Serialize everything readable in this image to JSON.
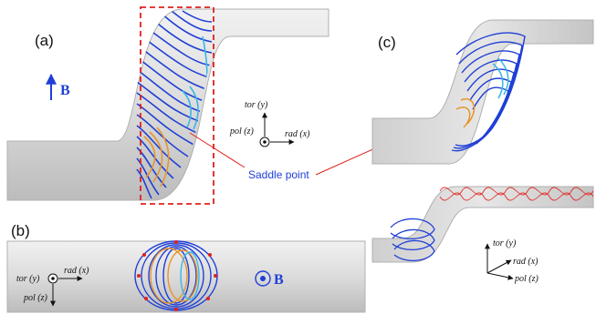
{
  "panels": {
    "a": "(a)",
    "b": "(b)",
    "c": "(c)"
  },
  "annotations": {
    "saddle_point": "Saddle point",
    "field_a": "B",
    "field_b": "B"
  },
  "axes": {
    "a": {
      "tor": "tor (y)",
      "pol": "pol (z)",
      "rad": "rad (x)"
    },
    "b": {
      "tor": "tor (y)",
      "pol": "pol (z)",
      "rad": "rad (x)"
    },
    "c": {
      "tor": "tor (y)",
      "pol": "pol (z)",
      "rad": "rad (x)"
    }
  },
  "colors": {
    "field_lines": "#1f3fd6",
    "highlight_orange": "#e8942a",
    "highlight_cyan": "#39b6e8",
    "annotation_red": "#e0211d",
    "tube_gray": "#d9d9d9"
  }
}
